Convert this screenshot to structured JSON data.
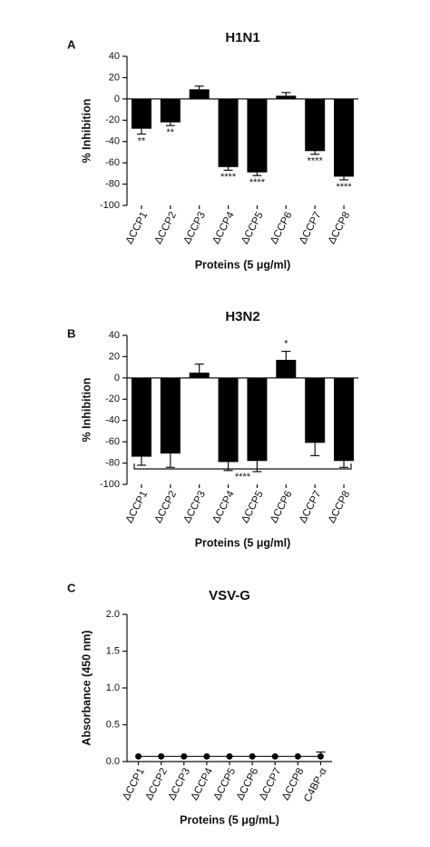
{
  "chart_data": [
    {
      "type": "bar",
      "panel": "A",
      "title": "H1N1",
      "ylabel": "% Inhibition",
      "xlabel": "Proteins (5 μg/ml)",
      "categories": [
        "ΔCCP1",
        "ΔCCP2",
        "ΔCCP3",
        "ΔCCP4",
        "ΔCCP5",
        "ΔCCP6",
        "ΔCCP7",
        "ΔCCP8"
      ],
      "values": [
        -28,
        -22,
        9,
        -64,
        -69,
        3,
        -49,
        -73
      ],
      "errors": [
        5,
        3,
        3,
        3,
        3,
        3,
        3,
        3
      ],
      "annotations": [
        "**",
        "**",
        null,
        "****",
        "****",
        null,
        "****",
        "****"
      ],
      "color": "#000000",
      "ylim": [
        -100,
        40
      ],
      "yticks": [
        -100,
        -80,
        -60,
        -40,
        -20,
        0,
        20,
        40
      ]
    },
    {
      "type": "bar",
      "panel": "B",
      "title": "H3N2",
      "ylabel": "% Inhibition",
      "xlabel": "Proteins (5 μg/ml)",
      "categories": [
        "ΔCCP1",
        "ΔCCP2",
        "ΔCCP3",
        "ΔCCP4",
        "ΔCCP5",
        "ΔCCP6",
        "ΔCCP7",
        "ΔCCP8"
      ],
      "values": [
        -74,
        -71,
        5,
        -79,
        -78,
        17,
        -61,
        -78
      ],
      "errors": [
        8,
        13,
        8,
        8,
        10,
        8,
        12,
        6
      ],
      "annotations": [
        null,
        null,
        null,
        null,
        null,
        "*",
        null,
        null
      ],
      "bracket_label": "****",
      "color": "#000000",
      "ylim": [
        -100,
        40
      ],
      "yticks": [
        -100,
        -80,
        -60,
        -40,
        -20,
        0,
        20,
        40
      ]
    },
    {
      "type": "line",
      "panel": "C",
      "title": "VSV-G",
      "ylabel": "Absorbance (450 nm)",
      "xlabel": "Proteins (5 μg/mL)",
      "categories": [
        "ΔCCP1",
        "ΔCCP2",
        "ΔCCP3",
        "ΔCCP4",
        "ΔCCP5",
        "ΔCCP6",
        "ΔCCP7",
        "ΔCCP8",
        "C4BP-α"
      ],
      "values": [
        0.07,
        0.07,
        0.07,
        0.07,
        0.07,
        0.07,
        0.07,
        0.07,
        0.07
      ],
      "errors": [
        null,
        null,
        null,
        null,
        null,
        null,
        null,
        null,
        0.06
      ],
      "color": "#000000",
      "ylim": [
        0,
        2
      ],
      "yticks": [
        {
          "value": 0,
          "label": "0.0"
        },
        {
          "value": 0.5,
          "label": "0.5"
        },
        {
          "value": 1,
          "label": "1.0"
        },
        {
          "value": 1.5,
          "label": "1.5"
        },
        {
          "value": 2,
          "label": "2.0"
        }
      ]
    }
  ]
}
